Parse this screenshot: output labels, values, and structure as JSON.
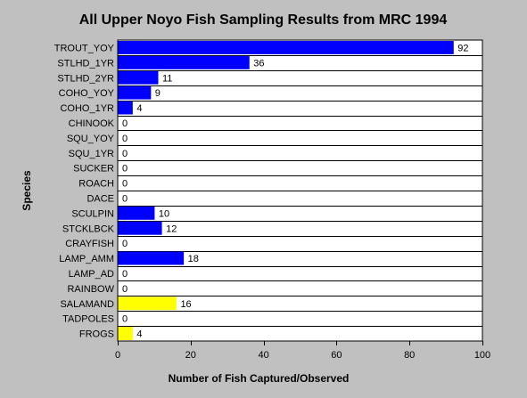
{
  "chart_data": {
    "type": "bar",
    "orientation": "horizontal",
    "title": "All Upper Noyo Fish Sampling Results from MRC 1994",
    "xlabel": "Number of Fish Captured/Observed",
    "ylabel": "Species",
    "xlim": [
      0,
      100
    ],
    "xticks": [
      0,
      20,
      40,
      60,
      80,
      100
    ],
    "grid": "horizontal lines between categories",
    "legend": "none",
    "categories": [
      "TROUT_YOY",
      "STLHD_1YR",
      "STLHD_2YR",
      "COHO_YOY",
      "COHO_1YR",
      "CHINOOK",
      "SQU_YOY",
      "SQU_1YR",
      "SUCKER",
      "ROACH",
      "DACE",
      "SCULPIN",
      "STCKLBCK",
      "CRAYFISH",
      "LAMP_AMM",
      "LAMP_AD",
      "RAINBOW",
      "SALAMAND",
      "TADPOLES",
      "FROGS"
    ],
    "values": [
      92,
      36,
      11,
      9,
      4,
      0,
      0,
      0,
      0,
      0,
      0,
      10,
      12,
      0,
      18,
      0,
      0,
      16,
      0,
      4
    ],
    "bar_colors": [
      "#0000ff",
      "#0000ff",
      "#0000ff",
      "#0000ff",
      "#0000ff",
      "#0000ff",
      "#0000ff",
      "#0000ff",
      "#0000ff",
      "#0000ff",
      "#0000ff",
      "#0000ff",
      "#0000ff",
      "#0000ff",
      "#0000ff",
      "#0000ff",
      "#0000ff",
      "#ffff00",
      "#ffff00",
      "#ffff00"
    ],
    "colors": {
      "background": "#c0c0c0",
      "plot_background": "#ffffff",
      "fish": "#0000ff",
      "amphibian": "#ffff00"
    }
  }
}
